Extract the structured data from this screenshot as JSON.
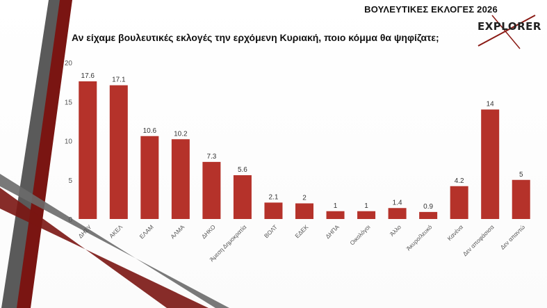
{
  "header": {
    "top_title": "ΒΟΥΛΕΥΤΙΚΕΣ ΕΚΛΟΓΕΣ 2026",
    "question": "Αν είχαμε βουλευτικές εκλογές την ερχόμενη Κυριακή, ποιο κόμμα θα ψηφίζατε;",
    "logo_text": "EXPLORER"
  },
  "colors": {
    "bar": "#b5322a",
    "accent_dark_red": "#7a1512",
    "accent_gray": "#5a5a5a"
  },
  "chart_data": {
    "type": "bar",
    "title": "Αν είχαμε βουλευτικές εκλογές την ερχόμενη Κυριακή, ποιο κόμμα θα ψηφίζατε;",
    "categories": [
      "ΔΗΣΥ",
      "ΑΚΕΛ",
      "ΕΛΑΜ",
      "ΑΛΜΑ",
      "ΔΗΚΟ",
      "Άμεση Δημοκρατία",
      "ΒΟΛΤ",
      "ΕΔΕΚ",
      "ΔΗΠΑ",
      "Οικολόγοι",
      "Άλλο",
      "Άκυρο/λευκό",
      "Κανένα",
      "Δεν αποφάσισα",
      "Δεν απαντώ"
    ],
    "values": [
      17.6,
      17.1,
      10.6,
      10.2,
      7.3,
      5.6,
      2.1,
      2,
      1,
      1,
      1.4,
      0.9,
      4.2,
      14,
      5
    ],
    "value_labels": [
      "17.6",
      "17.1",
      "10.6",
      "10.2",
      "7.3",
      "5.6",
      "2.1",
      "2",
      "1",
      "1",
      "1.4",
      "0.9",
      "4.2",
      "14",
      "5"
    ],
    "yticks": [
      "0",
      "5",
      "10",
      "15",
      "20"
    ],
    "ylim": [
      0,
      20
    ],
    "xlabel": "",
    "ylabel": "",
    "grid": false,
    "legend": "none"
  }
}
